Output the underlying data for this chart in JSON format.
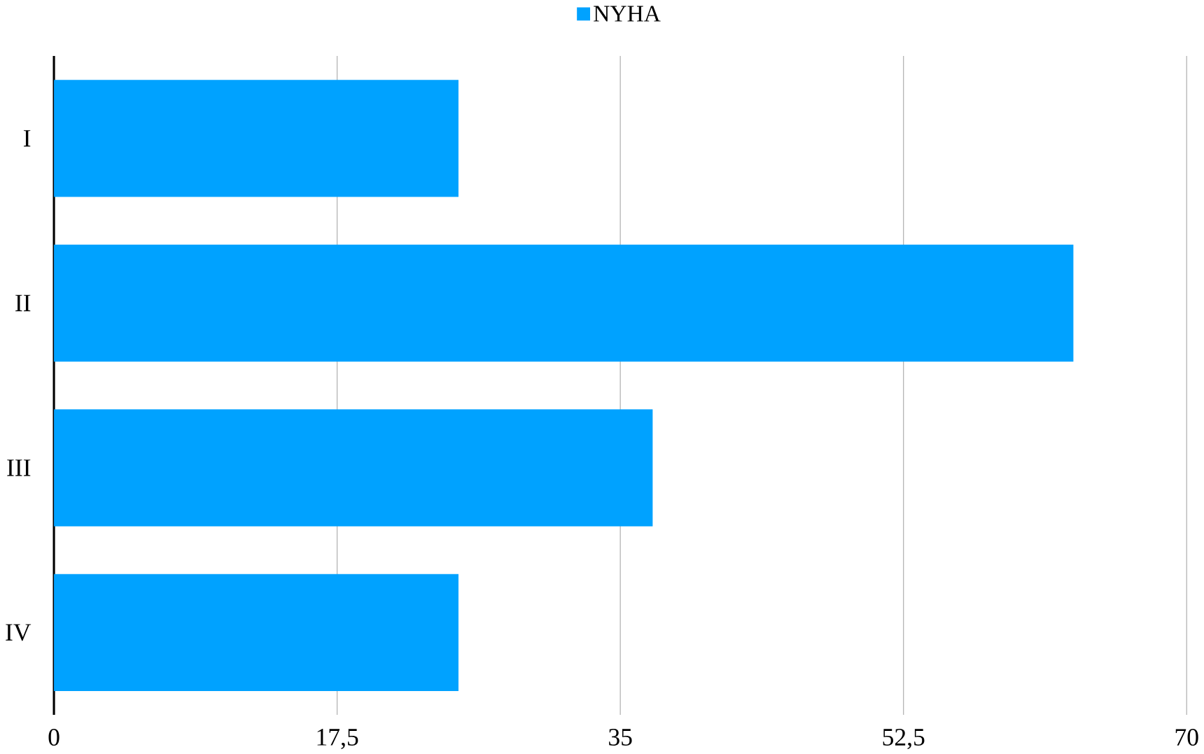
{
  "chart_data": {
    "type": "bar",
    "orientation": "horizontal",
    "categories": [
      "I",
      "II",
      "III",
      "IV"
    ],
    "series": [
      {
        "name": "NYHA",
        "color": "#00a2ff",
        "values": [
          25,
          63,
          37,
          25
        ]
      }
    ],
    "xlim": [
      0,
      70
    ],
    "xticks": [
      0,
      {
        "value": 17.5,
        "label": "17,5"
      },
      35,
      {
        "value": 52.5,
        "label": "52,5"
      },
      70
    ],
    "grid": "x",
    "legend": "top"
  }
}
